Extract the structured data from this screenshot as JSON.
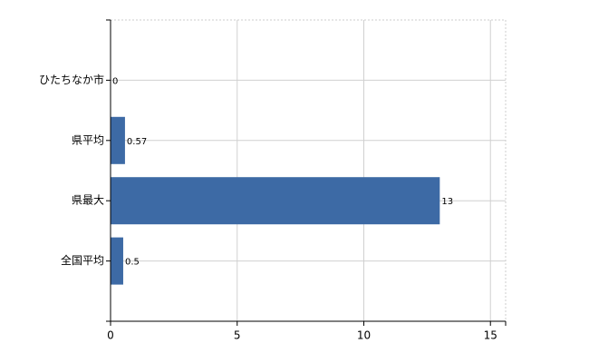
{
  "chart_data": {
    "type": "bar",
    "orientation": "horizontal",
    "categories": [
      "ひたちなか市",
      "県平均",
      "県最大",
      "全国平均"
    ],
    "values": [
      0,
      0.57,
      13,
      0.5
    ],
    "color": "#3d6aa5",
    "xlim": [
      0,
      15.6
    ],
    "xticks": [
      0,
      5,
      10,
      15
    ],
    "grid": true
  }
}
